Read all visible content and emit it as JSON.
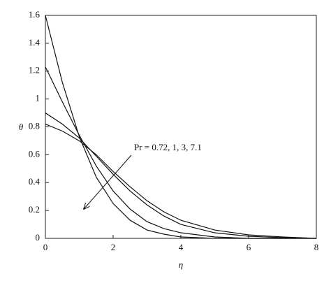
{
  "chart_data": {
    "type": "line",
    "xlabel": "η",
    "ylabel": "θ",
    "annotation": "Pr = 0.72, 1, 3, 7.1",
    "x": [
      0,
      0.5,
      1,
      1.5,
      2,
      2.5,
      3,
      3.5,
      4,
      5,
      6,
      7,
      8
    ],
    "series": [
      {
        "color": "#111111",
        "values": [
          0.82,
          0.77,
          0.7,
          0.6,
          0.48,
          0.37,
          0.27,
          0.19,
          0.13,
          0.06,
          0.025,
          0.01,
          0
        ]
      },
      {
        "color": "#111111",
        "values": [
          0.9,
          0.82,
          0.72,
          0.59,
          0.46,
          0.34,
          0.24,
          0.16,
          0.1,
          0.04,
          0.015,
          0.005,
          0
        ]
      },
      {
        "color": "#111111",
        "values": [
          1.23,
          0.98,
          0.74,
          0.52,
          0.34,
          0.21,
          0.12,
          0.07,
          0.04,
          0.01,
          0,
          0,
          0
        ]
      },
      {
        "color": "#111111",
        "values": [
          1.6,
          1.12,
          0.73,
          0.44,
          0.25,
          0.13,
          0.06,
          0.03,
          0.01,
          0,
          0,
          0,
          0
        ]
      }
    ],
    "xlim": [
      0,
      8
    ],
    "xticks": [
      0,
      2,
      4,
      6,
      8
    ],
    "ylim": [
      0,
      1.6
    ],
    "yticks": [
      0,
      0.2,
      0.4,
      0.6,
      0.8,
      1,
      1.2,
      1.4,
      1.6
    ]
  }
}
